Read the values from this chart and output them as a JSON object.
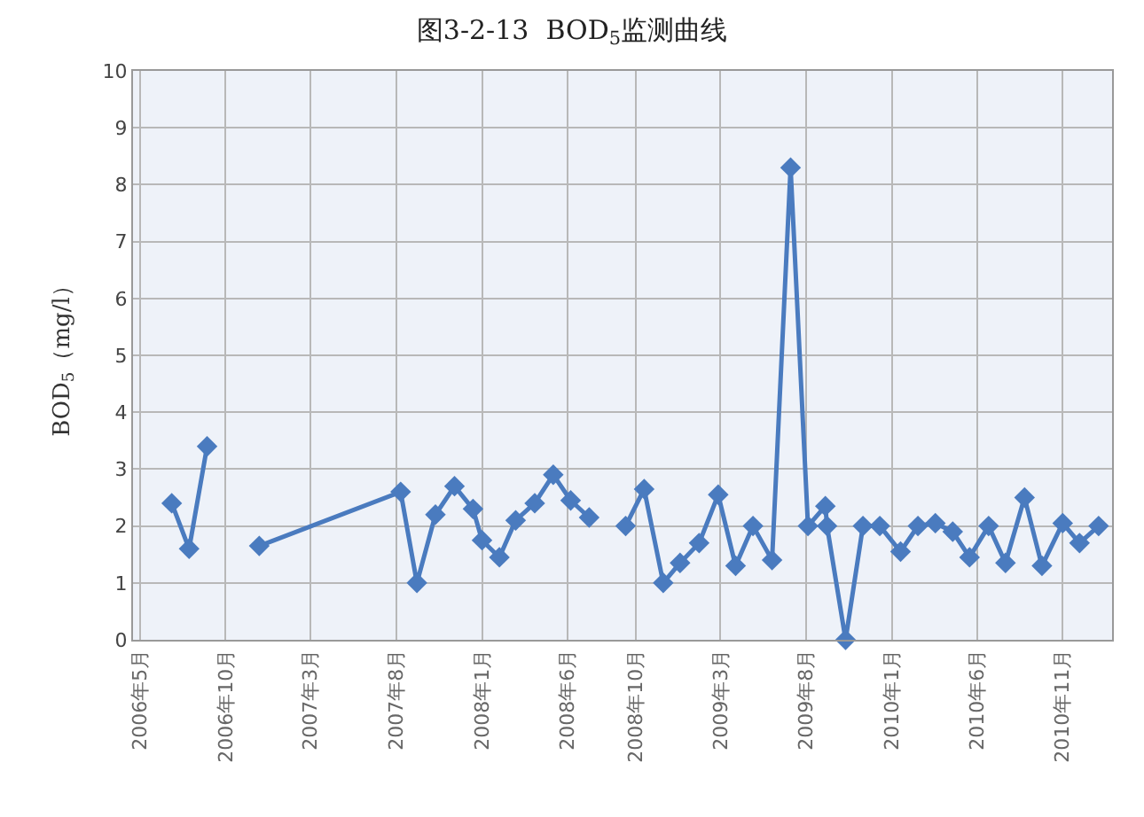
{
  "chart_data": {
    "type": "line",
    "title": "图3-2-13  BOD$_{5}$监测曲线",
    "ylabel": "BOD$_{5}$（mg/l）",
    "x": [
      "2006-06-27",
      "2006-07-28",
      "2006-08-29",
      "2006-10-15",
      "2006-11-30",
      "2007-08-09",
      "2007-09-07",
      "2007-10-10",
      "2007-11-13",
      "2007-12-16",
      "2008-01-01",
      "2008-02-01",
      "2008-03-01",
      "2008-04-04",
      "2008-05-07",
      "2008-06-07",
      "2008-07-10",
      "2008-08-12",
      "2008-09-13",
      "2008-10-16",
      "2008-11-19",
      "2008-12-19",
      "2009-01-22",
      "2009-02-25",
      "2009-03-28",
      "2009-04-28",
      "2009-06-01",
      "2009-07-04",
      "2009-08-04",
      "2009-09-04",
      "2009-09-07",
      "2009-10-10",
      "2009-11-10",
      "2009-12-10",
      "2010-01-16",
      "2010-02-16",
      "2010-03-19",
      "2010-04-19",
      "2010-05-19",
      "2010-06-22",
      "2010-07-22",
      "2010-08-25",
      "2010-09-25",
      "2010-11-01",
      "2010-12-01",
      "2011-01-04"
    ],
    "series": [
      {
        "color": "#4a7bbf",
        "values": [
          2.4,
          1.6,
          3.4,
          null,
          1.65,
          2.6,
          1.0,
          2.2,
          2.7,
          2.3,
          1.75,
          1.45,
          2.1,
          2.4,
          2.9,
          2.45,
          2.15,
          null,
          2.0,
          2.65,
          1.0,
          1.35,
          1.7,
          2.55,
          1.3,
          2.0,
          1.4,
          8.3,
          2.0,
          2.35,
          2.0,
          0,
          2.0,
          2.0,
          1.55,
          2.0,
          2.05,
          1.9,
          1.45,
          2.0,
          1.35,
          2.5,
          1.3,
          2.05,
          1.7,
          2.0
        ]
      }
    ],
    "ylim": [
      0,
      10
    ],
    "yticks": [
      0,
      1,
      2,
      3,
      4,
      5,
      6,
      7,
      8,
      9,
      10
    ],
    "xlim": [
      "2006-04-19",
      "2011-01-28"
    ],
    "xticks": [
      {
        "value": "2006-05-01",
        "label": "2006年5月"
      },
      {
        "value": "2006-10-01",
        "label": "2006年10月"
      },
      {
        "value": "2007-03-01",
        "label": "2007年3月"
      },
      {
        "value": "2007-08-01",
        "label": "2007年8月"
      },
      {
        "value": "2008-01-01",
        "label": "2008年1月"
      },
      {
        "value": "2008-06-01",
        "label": "2008年6月"
      },
      {
        "value": "2008-10-01",
        "label": "2008年10月"
      },
      {
        "value": "2009-03-01",
        "label": "2009年3月"
      },
      {
        "value": "2009-08-01",
        "label": "2009年8月"
      },
      {
        "value": "2010-01-01",
        "label": "2010年1月"
      },
      {
        "value": "2010-06-01",
        "label": "2010年6月"
      },
      {
        "value": "2010-11-01",
        "label": "2010年11月"
      }
    ],
    "grid": true,
    "marker": "diamond",
    "line_style": "solid"
  }
}
